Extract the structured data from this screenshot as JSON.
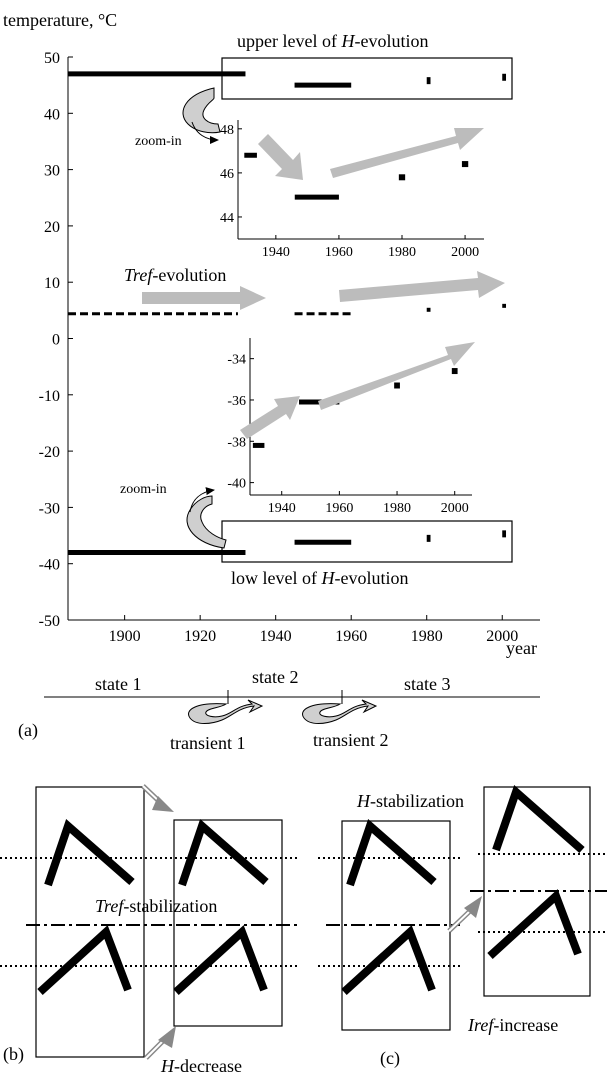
{
  "chart_data": {
    "type": "scatter",
    "ylabel": "temperature, °C",
    "xlabel": "year",
    "xlim": [
      1885,
      2010
    ],
    "ylim": [
      -50,
      50
    ],
    "x_ticks": [
      1900,
      1920,
      1940,
      1960,
      1980,
      2000
    ],
    "y_ticks": [
      50,
      40,
      30,
      20,
      10,
      0,
      -10,
      -20,
      -30,
      -40,
      -50
    ],
    "grid": false,
    "series": [
      {
        "name": "upper level of H-evolution",
        "segments": [
          {
            "x": [
              1885,
              1932
            ],
            "y": 47
          },
          {
            "x": [
              1945,
              1960
            ],
            "y": 45
          },
          {
            "x": [
              1980,
              1981
            ],
            "y": 45.8
          },
          {
            "x": [
              2000,
              2001
            ],
            "y": 46.4
          }
        ]
      },
      {
        "name": "Tref-evolution",
        "segments": [
          {
            "x": [
              1885,
              1930
            ],
            "y": 4.4
          },
          {
            "x": [
              1945,
              1960
            ],
            "y": 4.4
          },
          {
            "x": [
              1980,
              1981
            ],
            "y": 5.1
          },
          {
            "x": [
              2000,
              2001
            ],
            "y": 5.8
          }
        ]
      },
      {
        "name": "low level of H-evolution",
        "segments": [
          {
            "x": [
              1885,
              1932
            ],
            "y": -38
          },
          {
            "x": [
              1945,
              1960
            ],
            "y": -36.2
          },
          {
            "x": [
              1980,
              1981
            ],
            "y": -35.5
          },
          {
            "x": [
              2000,
              2001
            ],
            "y": -34.7
          }
        ]
      }
    ],
    "insets": [
      {
        "x_ticks": [
          1940,
          1960,
          1980,
          2000
        ],
        "y_ticks": [
          48,
          46,
          44
        ],
        "ylim": [
          43,
          48.4
        ],
        "segments": [
          {
            "x": [
              1930,
              1934
            ],
            "y": 46.8
          },
          {
            "x": [
              1946,
              1960
            ],
            "y": 44.9
          },
          {
            "x": [
              1979,
              1981
            ],
            "y": 45.8
          },
          {
            "x": [
              1999,
              2001
            ],
            "y": 46.4
          }
        ]
      },
      {
        "x_ticks": [
          1940,
          1960,
          1980,
          2000
        ],
        "y_ticks": [
          -34,
          -36,
          -38,
          -40
        ],
        "ylim": [
          -40.6,
          -33
        ],
        "segments": [
          {
            "x": [
              1930,
              1934
            ],
            "y": -38.2
          },
          {
            "x": [
              1946,
              1960
            ],
            "y": -36.1
          },
          {
            "x": [
              1979,
              1981
            ],
            "y": -35.3
          },
          {
            "x": [
              1999,
              2001
            ],
            "y": -34.6
          }
        ]
      }
    ],
    "annotations": {
      "zoom_in": "zoom-in",
      "tref_evolution": "Tref-evolution",
      "upper_level": "upper level of H-evolution",
      "low_level": "low level of H-evolution"
    }
  },
  "timeline": {
    "state1": "state 1",
    "state2": "state 2",
    "state3": "state 3",
    "transient1": "transient 1",
    "transient2": "transient 2",
    "panel_a": "(a)"
  },
  "diagrams": {
    "panel_b": "(b)",
    "panel_c": "(c)",
    "tref_stabilization": "Tref-stabilization",
    "h_decrease": "H-decrease",
    "h_stabilization": "H-stabilization",
    "iref_increase": "Iref-increase"
  },
  "colors": {
    "arrow_gray": "#bcbcbc",
    "curl_fill": "#cfcfcf",
    "ink": "#000000"
  }
}
